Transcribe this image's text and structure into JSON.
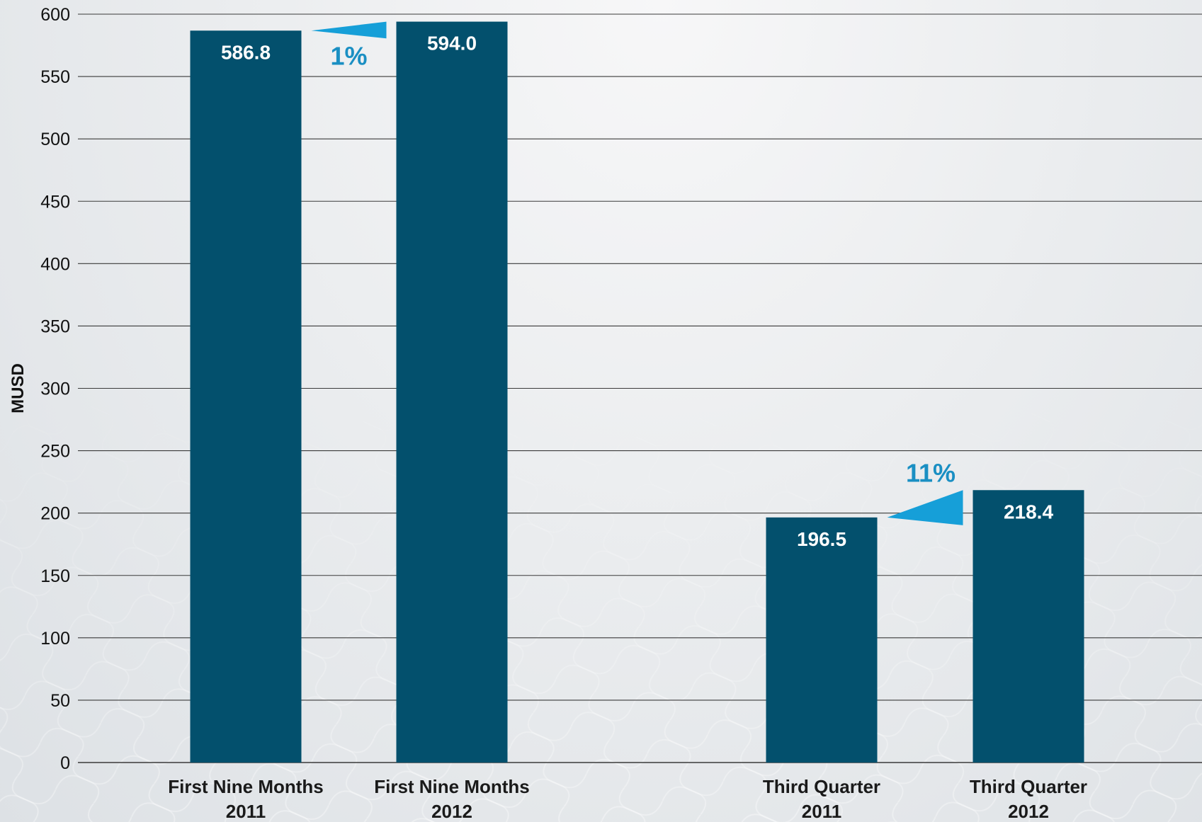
{
  "chart_data": {
    "type": "bar",
    "ylabel": "MUSD",
    "xlabel": "",
    "title": "",
    "ylim": [
      0,
      600
    ],
    "yticks": [
      0,
      50,
      100,
      150,
      200,
      250,
      300,
      350,
      400,
      450,
      500,
      550,
      600
    ],
    "grid": true,
    "categories": [
      [
        "First Nine Months",
        "2011"
      ],
      [
        "First Nine Months",
        "2012"
      ],
      [
        "Third Quarter",
        "2011"
      ],
      [
        "Third Quarter",
        "2012"
      ]
    ],
    "values": [
      586.8,
      594.0,
      196.5,
      218.4
    ],
    "value_labels": [
      "586.8",
      "594.0",
      "196.5",
      "218.4"
    ],
    "changes": [
      {
        "from": 0,
        "to": 1,
        "label": "1%"
      },
      {
        "from": 2,
        "to": 3,
        "label": "11%"
      }
    ]
  },
  "colors": {
    "bar": "#03506d",
    "change": "#169fd8",
    "change_text": "#1a8fc3",
    "grid": "#3a3a3a"
  }
}
